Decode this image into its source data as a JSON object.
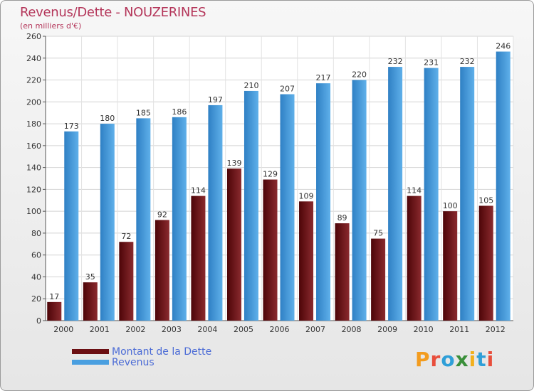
{
  "header": {
    "title": "Revenus/Dette - NOUZERINES",
    "subtitle": "(en milliers d'€)"
  },
  "legend": {
    "items": [
      {
        "label": "Montant de la Dette",
        "color": "#6b0f13"
      },
      {
        "label": "Revenus",
        "color": "#4a9fe0"
      }
    ]
  },
  "logo": {
    "text": "Proxiti",
    "letters": [
      {
        "ch": "P",
        "color": "#f39c1f"
      },
      {
        "ch": "r",
        "color": "#e84e3c"
      },
      {
        "ch": "o",
        "color": "#2f9fd8"
      },
      {
        "ch": "x",
        "color": "#3a8f3a"
      },
      {
        "ch": "i",
        "color": "#f2b01e"
      },
      {
        "ch": "t",
        "color": "#2f9fd8"
      },
      {
        "ch": "i",
        "color": "#e84e3c"
      }
    ]
  },
  "chart_data": {
    "type": "bar",
    "title": "Revenus/Dette - NOUZERINES",
    "ylabel": "(en milliers d'€)",
    "xlabel": "",
    "ylim": [
      0,
      260
    ],
    "yticks": [
      0,
      20,
      40,
      60,
      80,
      100,
      120,
      140,
      160,
      180,
      200,
      220,
      240,
      260
    ],
    "grid": true,
    "legend_position": "bottom-left",
    "categories": [
      "2000",
      "2001",
      "2002",
      "2003",
      "2004",
      "2005",
      "2006",
      "2007",
      "2008",
      "2009",
      "2010",
      "2011",
      "2012"
    ],
    "series": [
      {
        "name": "Montant de la Dette",
        "color": "#6b0f13",
        "values": [
          17,
          35,
          72,
          92,
          114,
          139,
          129,
          109,
          89,
          75,
          114,
          100,
          105
        ]
      },
      {
        "name": "Revenus",
        "color": "#4a9fe0",
        "values": [
          173,
          180,
          185,
          186,
          197,
          210,
          207,
          217,
          220,
          232,
          231,
          232,
          246
        ]
      }
    ]
  }
}
